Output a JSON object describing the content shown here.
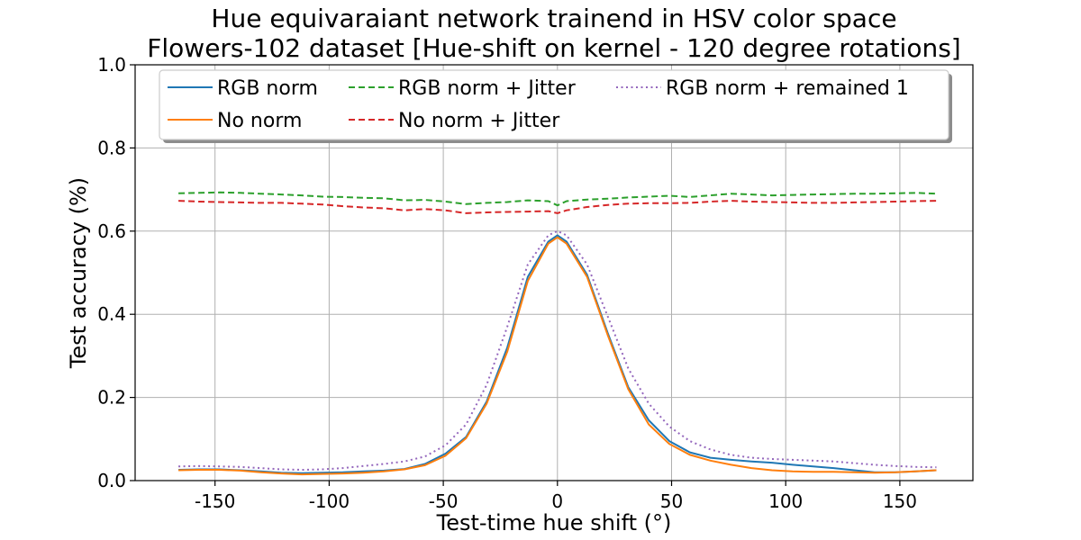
{
  "chart_data": {
    "type": "line",
    "title": "Hue equivaraiant network trainend in HSV color space",
    "subtitle": "Flowers-102 dataset [Hue-shift on kernel - 120 degree rotations]",
    "xlabel": "Test-time hue shift (°)",
    "ylabel": "Test accuracy (%)",
    "xlim": [
      -185,
      182
    ],
    "ylim": [
      0,
      1
    ],
    "xticks": [
      -150,
      -100,
      -50,
      0,
      50,
      100,
      150
    ],
    "xtick_labels": [
      "-150",
      "-100",
      "-50",
      "0",
      "50",
      "100",
      "150"
    ],
    "yticks": [
      0,
      0.2,
      0.4,
      0.6,
      0.8,
      1.0
    ],
    "ytick_labels": [
      "0.0",
      "0.2",
      "0.4",
      "0.6",
      "0.8",
      "1.0"
    ],
    "grid": true,
    "legend_position": "top",
    "legend_columns": 3,
    "x": [
      -166,
      -157,
      -148,
      -139,
      -130,
      -121,
      -112,
      -103,
      -94,
      -85,
      -76,
      -67,
      -58,
      -49,
      -40,
      -31,
      -22,
      -13,
      -4,
      0,
      4,
      13,
      22,
      31,
      40,
      49,
      58,
      67,
      76,
      85,
      94,
      103,
      112,
      121,
      130,
      139,
      148,
      157,
      166
    ],
    "series": [
      {
        "name": "RGB norm",
        "color": "#1f77b4",
        "style": "solid",
        "values": [
          0.026,
          0.027,
          0.027,
          0.025,
          0.022,
          0.019,
          0.018,
          0.019,
          0.02,
          0.022,
          0.024,
          0.028,
          0.04,
          0.065,
          0.105,
          0.19,
          0.32,
          0.49,
          0.575,
          0.59,
          0.575,
          0.495,
          0.355,
          0.225,
          0.145,
          0.095,
          0.068,
          0.055,
          0.05,
          0.046,
          0.043,
          0.038,
          0.034,
          0.03,
          0.025,
          0.02,
          0.02,
          0.022,
          0.025
        ]
      },
      {
        "name": "No norm",
        "color": "#ff7f0e",
        "style": "solid",
        "values": [
          0.025,
          0.026,
          0.026,
          0.024,
          0.02,
          0.017,
          0.015,
          0.016,
          0.017,
          0.019,
          0.022,
          0.027,
          0.037,
          0.06,
          0.102,
          0.185,
          0.31,
          0.48,
          0.57,
          0.585,
          0.57,
          0.49,
          0.35,
          0.22,
          0.135,
          0.088,
          0.062,
          0.048,
          0.038,
          0.03,
          0.025,
          0.022,
          0.021,
          0.021,
          0.02,
          0.019,
          0.02,
          0.022,
          0.025
        ]
      },
      {
        "name": "RGB norm + Jitter",
        "color": "#2ca02c",
        "style": "dashed",
        "values": [
          0.691,
          0.692,
          0.693,
          0.692,
          0.69,
          0.688,
          0.686,
          0.683,
          0.682,
          0.68,
          0.679,
          0.674,
          0.675,
          0.671,
          0.665,
          0.668,
          0.67,
          0.674,
          0.672,
          0.662,
          0.672,
          0.676,
          0.678,
          0.681,
          0.683,
          0.685,
          0.682,
          0.686,
          0.69,
          0.688,
          0.686,
          0.687,
          0.688,
          0.689,
          0.69,
          0.69,
          0.691,
          0.692,
          0.69
        ]
      },
      {
        "name": "No norm + Jitter",
        "color": "#d62728",
        "style": "dashed",
        "values": [
          0.673,
          0.671,
          0.67,
          0.669,
          0.668,
          0.668,
          0.666,
          0.664,
          0.66,
          0.657,
          0.655,
          0.65,
          0.653,
          0.65,
          0.643,
          0.645,
          0.646,
          0.647,
          0.648,
          0.643,
          0.65,
          0.658,
          0.663,
          0.666,
          0.667,
          0.667,
          0.668,
          0.671,
          0.673,
          0.671,
          0.67,
          0.669,
          0.668,
          0.668,
          0.669,
          0.67,
          0.671,
          0.672,
          0.673
        ]
      },
      {
        "name": "RGB norm + remained 1",
        "color": "#9467bd",
        "style": "dotted",
        "values": [
          0.034,
          0.035,
          0.034,
          0.033,
          0.03,
          0.027,
          0.026,
          0.027,
          0.03,
          0.035,
          0.04,
          0.046,
          0.058,
          0.085,
          0.135,
          0.23,
          0.37,
          0.52,
          0.59,
          0.6,
          0.59,
          0.52,
          0.395,
          0.27,
          0.185,
          0.13,
          0.095,
          0.075,
          0.062,
          0.055,
          0.052,
          0.05,
          0.048,
          0.046,
          0.042,
          0.038,
          0.035,
          0.033,
          0.032
        ]
      }
    ]
  }
}
